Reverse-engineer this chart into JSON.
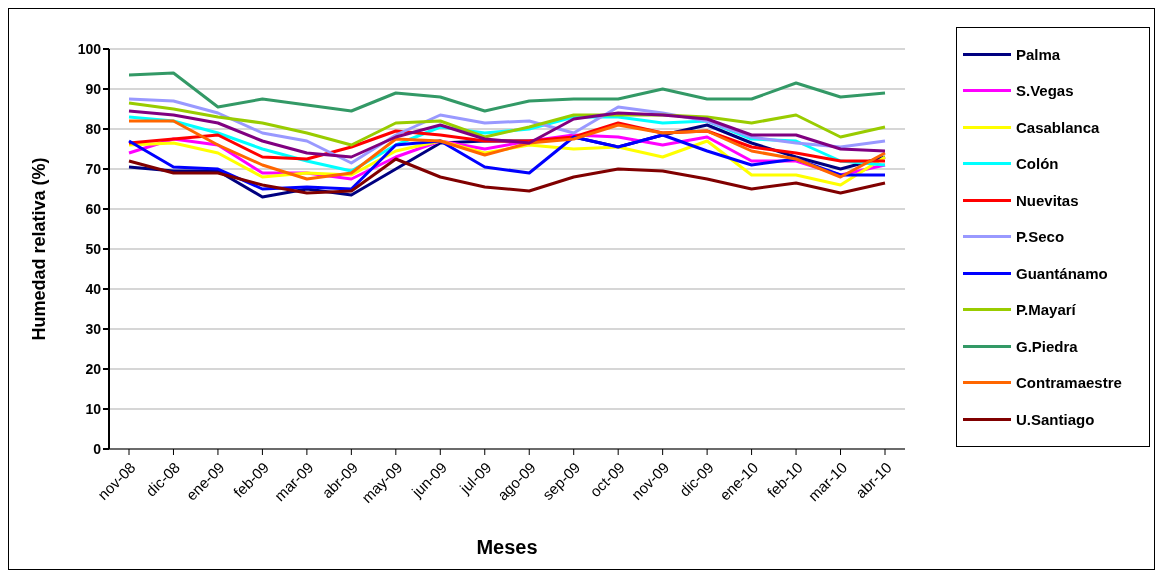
{
  "chart_data": {
    "type": "line",
    "xlabel": "Meses",
    "ylabel": "Humedad relativa (%)",
    "categories": [
      "nov-08",
      "dic-08",
      "ene-09",
      "feb-09",
      "mar-09",
      "abr-09",
      "may-09",
      "jun-09",
      "jul-09",
      "ago-09",
      "sep-09",
      "oct-09",
      "nov-09",
      "dic-09",
      "ene-10",
      "feb-10",
      "mar-10",
      "abr-10"
    ],
    "series": [
      {
        "name": "Palma",
        "color": "#000080",
        "values": [
          70.5,
          69.5,
          69.5,
          63,
          65,
          63.5,
          70,
          76.5,
          77,
          77,
          78,
          75.5,
          78.5,
          81,
          76.5,
          73,
          70,
          73
        ]
      },
      {
        "name": "S.Vegas",
        "color": "#ff00ff",
        "values": [
          74,
          77.5,
          76,
          69,
          69,
          67.5,
          73,
          77,
          75,
          77,
          78.5,
          78,
          76,
          78,
          72,
          72,
          68.5,
          71
        ]
      },
      {
        "name": "Casablanca",
        "color": "#ffff00",
        "values": [
          76,
          76.5,
          74,
          68,
          69,
          68.5,
          74.5,
          77,
          74,
          76,
          75,
          75.5,
          73,
          77,
          68.5,
          68.5,
          66,
          73
        ]
      },
      {
        "name": "Colón",
        "color": "#00ffff",
        "values": [
          83,
          82,
          79,
          75,
          72,
          69.5,
          76,
          80.5,
          79,
          80,
          83,
          83,
          81.5,
          82,
          77.5,
          77,
          72,
          71
        ]
      },
      {
        "name": "Nuevitas",
        "color": "#ff0000",
        "values": [
          76.5,
          77.5,
          78.5,
          73,
          72.5,
          75.5,
          79.5,
          78.5,
          77,
          77,
          78,
          81.5,
          79,
          79.5,
          75.5,
          74,
          72,
          72
        ]
      },
      {
        "name": "P.Seco",
        "color": "#9999ff",
        "values": [
          87.5,
          87,
          84,
          79,
          77,
          71.5,
          78.5,
          83.5,
          81.5,
          82,
          79,
          85.5,
          84,
          82,
          78,
          76.5,
          75.5,
          77
        ]
      },
      {
        "name": "Guantánamo",
        "color": "#0000ff",
        "values": [
          77,
          70.5,
          70,
          65,
          65.5,
          65,
          76,
          77,
          70.5,
          69,
          78,
          75.5,
          78.5,
          74.5,
          71,
          72.5,
          68.5,
          68.5
        ]
      },
      {
        "name": "P.Mayarí",
        "color": "#99cc00",
        "values": [
          86.5,
          85,
          83,
          81.5,
          79,
          76,
          81.5,
          82,
          78,
          80.5,
          83.5,
          83.5,
          83.5,
          83,
          81.5,
          83.5,
          78,
          80.5
        ]
      },
      {
        "name": "G.Piedra",
        "color": "#339966",
        "values": [
          93.5,
          94,
          85.5,
          87.5,
          86,
          84.5,
          89,
          88,
          84.5,
          87,
          87.5,
          87.5,
          90,
          87.5,
          87.5,
          91.5,
          88,
          89
        ]
      },
      {
        "name": "Contramaestre",
        "color": "#ff6600",
        "values": [
          82,
          82,
          76,
          71,
          67.5,
          69,
          77.5,
          77,
          73.5,
          76.5,
          77.5,
          81,
          79,
          79.5,
          74.5,
          72.5,
          68,
          74
        ]
      },
      {
        "name": "U.Santiago",
        "color": "#800000",
        "values": [
          72,
          69,
          69,
          66,
          64,
          64.5,
          72.5,
          68,
          65.5,
          64.5,
          68,
          70,
          69.5,
          67.5,
          65,
          66.5,
          64,
          66.5
        ]
      },
      {
        "color": "#800080",
        "values": [
          84.5,
          83.5,
          81.5,
          77,
          74,
          73,
          78,
          81,
          77.5,
          76.5,
          82.5,
          84,
          83.5,
          82.5,
          78.5,
          78.5,
          75,
          74.5
        ]
      }
    ],
    "ylim": [
      0,
      100
    ],
    "yticks": [
      0,
      10,
      20,
      30,
      40,
      50,
      60,
      70,
      80,
      90,
      100
    ],
    "grid": "y",
    "legend": "right",
    "marker": "none",
    "line_style": "solid"
  }
}
